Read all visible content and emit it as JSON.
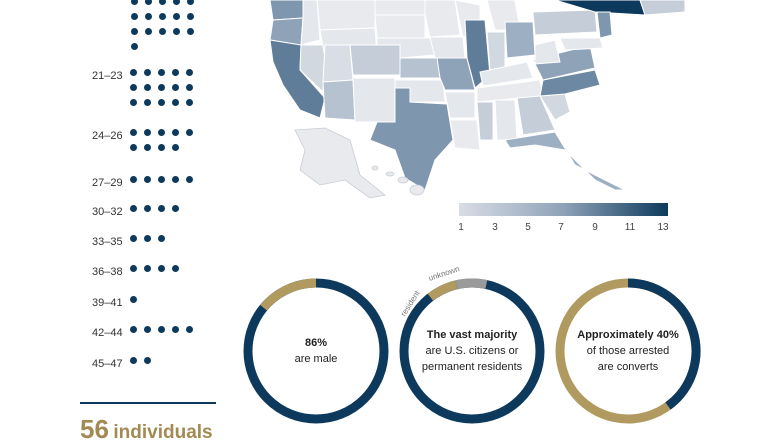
{
  "age_groups": [
    {
      "label": "21–23",
      "count": 15
    },
    {
      "label": "24–26",
      "count": 9
    },
    {
      "label": "27–29",
      "count": 5
    },
    {
      "label": "30–32",
      "count": 4
    },
    {
      "label": "33–35",
      "count": 3
    },
    {
      "label": "36–38",
      "count": 4
    },
    {
      "label": "39–41",
      "count": 1
    },
    {
      "label": "42–44",
      "count": 5
    },
    {
      "label": "45–47",
      "count": 2
    }
  ],
  "headline": {
    "number": "56",
    "text": "individuals"
  },
  "map_legend": {
    "ticks": [
      "1",
      "3",
      "5",
      "7",
      "9",
      "11",
      "13"
    ],
    "colors": {
      "low": "#d9dde5",
      "high": "#0d3a5c"
    }
  },
  "donuts": [
    {
      "value": "86%",
      "text": "are male",
      "share": 0.86
    },
    {
      "value": "The vast majority",
      "text_line1": "are U.S. citizens or",
      "text_line2": "permanent residents",
      "segment_labels": [
        "resident",
        "unknown"
      ]
    },
    {
      "value": "Approximately 40%",
      "text_line1": "of those arrested",
      "text_line2": "are converts",
      "share": 0.4
    }
  ],
  "colors": {
    "navy": "#0d3a5c",
    "gold": "#b09a60",
    "gray": "#9a9a9a"
  }
}
